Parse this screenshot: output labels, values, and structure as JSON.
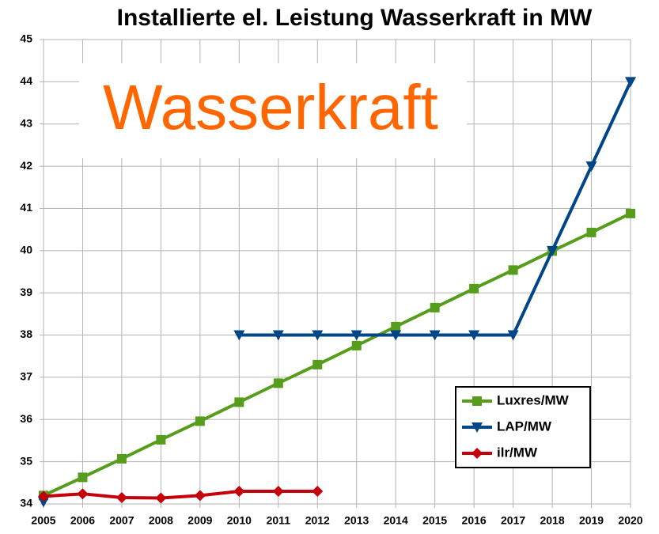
{
  "chart_data": {
    "type": "line",
    "title": "Installierte el. Leistung Wasserkraft in MW",
    "annotation": "Wasserkraft",
    "x": [
      2005,
      2006,
      2007,
      2008,
      2009,
      2010,
      2011,
      2012,
      2013,
      2014,
      2015,
      2016,
      2017,
      2018,
      2019,
      2020
    ],
    "series": [
      {
        "name": "Luxres/MW",
        "color": "#579d1c",
        "marker": "square",
        "values": [
          34.2,
          34.63,
          35.07,
          35.52,
          35.96,
          36.41,
          36.86,
          37.3,
          37.75,
          38.2,
          38.65,
          39.1,
          39.54,
          39.99,
          40.43,
          40.88
        ]
      },
      {
        "name": "LAP/MW",
        "color": "#004586",
        "marker": "triangle-down",
        "values": [
          34.05,
          null,
          null,
          null,
          null,
          38,
          38,
          38,
          38,
          38,
          38,
          38,
          38,
          40,
          42,
          44
        ]
      },
      {
        "name": "ilr/MW",
        "color": "#c5000b",
        "marker": "diamond",
        "values": [
          34.18,
          34.24,
          34.15,
          34.14,
          34.2,
          34.3,
          34.3,
          34.3,
          null,
          null,
          null,
          null,
          null,
          null,
          null,
          null
        ]
      }
    ],
    "xlim": [
      2005,
      2020
    ],
    "xticks": [
      2005,
      2006,
      2007,
      2008,
      2009,
      2010,
      2011,
      2012,
      2013,
      2014,
      2015,
      2016,
      2017,
      2018,
      2019,
      2020
    ],
    "ylim": [
      34,
      45
    ],
    "yticks": [
      34,
      35,
      36,
      37,
      38,
      39,
      40,
      41,
      42,
      43,
      44,
      45
    ],
    "grid": true,
    "legend": "lower right"
  }
}
